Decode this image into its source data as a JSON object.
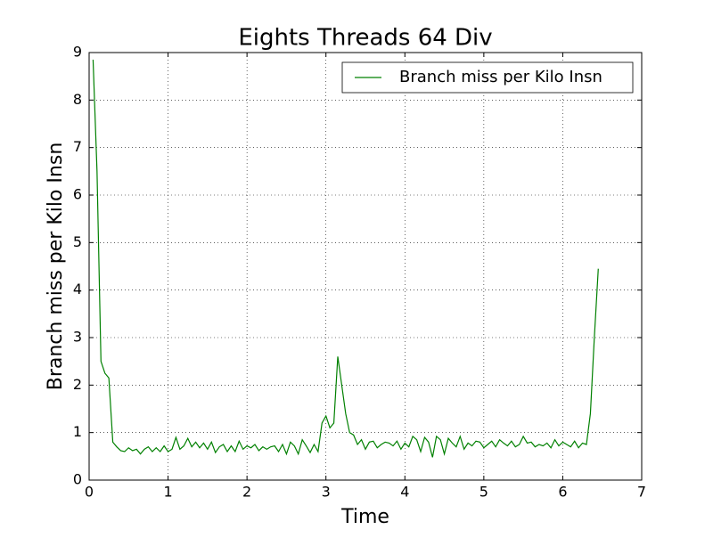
{
  "chart_data": {
    "type": "line",
    "title": "Eights Threads 64 Div",
    "x_label": "Time",
    "y_label": "Branch miss per Kilo Insn",
    "xlim": [
      0,
      7
    ],
    "xticks": [
      0,
      1,
      2,
      3,
      4,
      5,
      6,
      7
    ],
    "ylim": [
      0,
      9
    ],
    "yticks": [
      0,
      1,
      2,
      3,
      4,
      5,
      6,
      7,
      8,
      9
    ],
    "grid": true,
    "legend": "upper right",
    "x": [
      0.05,
      0.1,
      0.15,
      0.2,
      0.25,
      0.3,
      0.35,
      0.4,
      0.45,
      0.5,
      0.55,
      0.6,
      0.65,
      0.7,
      0.75,
      0.8,
      0.85,
      0.9,
      0.95,
      1.0,
      1.05,
      1.1,
      1.15,
      1.2,
      1.25,
      1.3,
      1.35,
      1.4,
      1.45,
      1.5,
      1.55,
      1.6,
      1.65,
      1.7,
      1.75,
      1.8,
      1.85,
      1.9,
      1.95,
      2.0,
      2.05,
      2.1,
      2.15,
      2.2,
      2.25,
      2.3,
      2.35,
      2.4,
      2.45,
      2.5,
      2.55,
      2.6,
      2.65,
      2.7,
      2.75,
      2.8,
      2.85,
      2.9,
      2.95,
      3.0,
      3.05,
      3.1,
      3.15,
      3.2,
      3.25,
      3.3,
      3.35,
      3.4,
      3.45,
      3.5,
      3.55,
      3.6,
      3.65,
      3.7,
      3.75,
      3.8,
      3.85,
      3.9,
      3.95,
      4.0,
      4.05,
      4.1,
      4.15,
      4.2,
      4.25,
      4.3,
      4.35,
      4.4,
      4.45,
      4.5,
      4.55,
      4.6,
      4.65,
      4.7,
      4.75,
      4.8,
      4.85,
      4.9,
      4.95,
      5.0,
      5.05,
      5.1,
      5.15,
      5.2,
      5.25,
      5.3,
      5.35,
      5.4,
      5.45,
      5.5,
      5.55,
      5.6,
      5.65,
      5.7,
      5.75,
      5.8,
      5.85,
      5.9,
      5.95,
      6.0,
      6.05,
      6.1,
      6.15,
      6.2,
      6.25,
      6.3,
      6.35,
      6.4,
      6.45
    ],
    "series": [
      {
        "name": "Branch miss per Kilo Insn",
        "color": "#008000",
        "values": [
          8.85,
          6.5,
          2.5,
          2.25,
          2.15,
          0.8,
          0.7,
          0.62,
          0.6,
          0.68,
          0.62,
          0.65,
          0.55,
          0.65,
          0.7,
          0.6,
          0.68,
          0.6,
          0.72,
          0.6,
          0.65,
          0.9,
          0.65,
          0.72,
          0.88,
          0.7,
          0.8,
          0.68,
          0.78,
          0.65,
          0.8,
          0.58,
          0.7,
          0.75,
          0.6,
          0.72,
          0.6,
          0.82,
          0.65,
          0.72,
          0.68,
          0.75,
          0.62,
          0.7,
          0.65,
          0.7,
          0.72,
          0.6,
          0.75,
          0.55,
          0.8,
          0.72,
          0.55,
          0.85,
          0.72,
          0.58,
          0.75,
          0.6,
          1.2,
          1.35,
          1.1,
          1.2,
          2.6,
          2.0,
          1.4,
          1.0,
          0.95,
          0.75,
          0.85,
          0.65,
          0.8,
          0.82,
          0.68,
          0.75,
          0.8,
          0.78,
          0.72,
          0.82,
          0.65,
          0.78,
          0.7,
          0.92,
          0.85,
          0.6,
          0.9,
          0.8,
          0.48,
          0.92,
          0.85,
          0.55,
          0.88,
          0.78,
          0.7,
          0.92,
          0.65,
          0.78,
          0.72,
          0.82,
          0.8,
          0.68,
          0.75,
          0.82,
          0.7,
          0.85,
          0.78,
          0.72,
          0.82,
          0.7,
          0.75,
          0.92,
          0.78,
          0.8,
          0.7,
          0.75,
          0.72,
          0.78,
          0.68,
          0.85,
          0.72,
          0.8,
          0.75,
          0.7,
          0.82,
          0.68,
          0.78,
          0.75,
          1.4,
          3.0,
          4.45
        ]
      }
    ]
  }
}
